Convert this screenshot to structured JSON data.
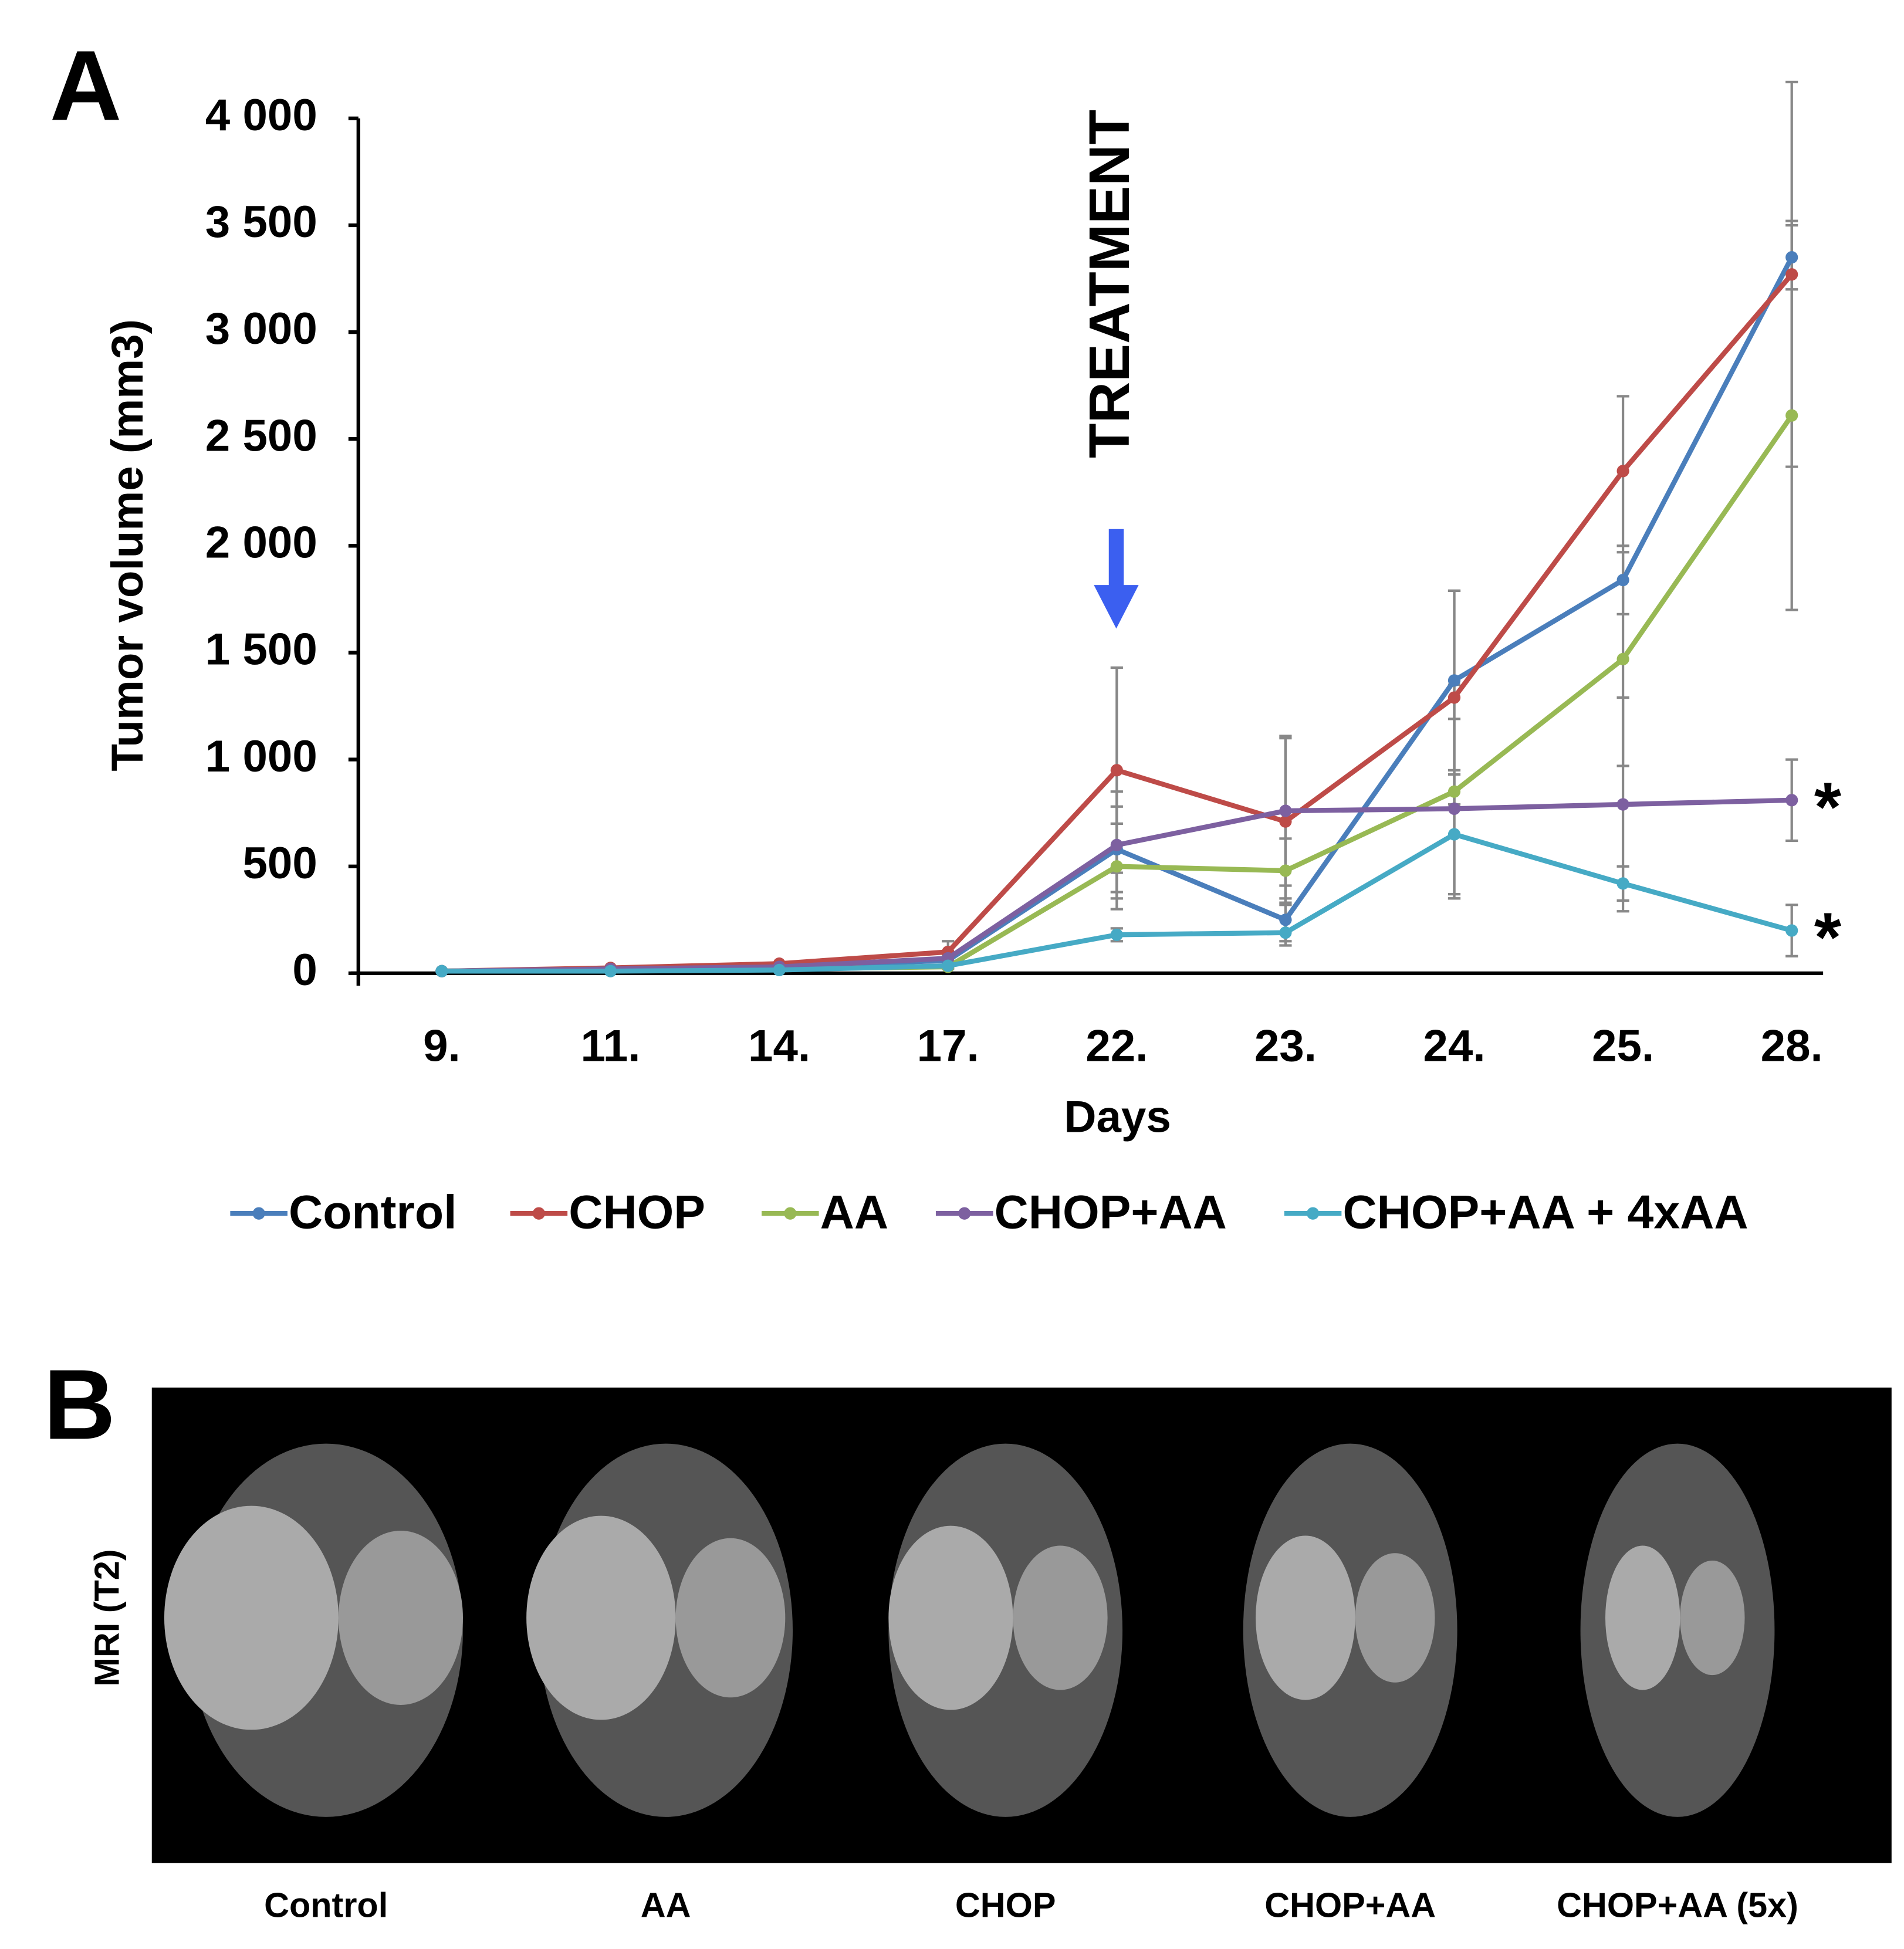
{
  "panels": {
    "a": "A",
    "b": "B"
  },
  "chart_data": {
    "type": "line",
    "y_label": "Tumor volume (mm3)",
    "x_label": "Days",
    "annotation": "TREATMENT",
    "categories": [
      "9.",
      "11.",
      "14.",
      "17.",
      "22.",
      "23.",
      "24.",
      "25.",
      "28."
    ],
    "ylim": [
      0,
      4000
    ],
    "yticks": [
      0,
      500,
      {
        "value": 1000,
        "label": "1 000"
      },
      {
        "value": 1500,
        "label": "1 500"
      },
      {
        "value": 2000,
        "label": "2 000"
      },
      {
        "value": 2500,
        "label": "2 500"
      },
      {
        "value": 3000,
        "label": "3 000"
      },
      {
        "value": 3500,
        "label": "3 500"
      },
      {
        "value": 4000,
        "label": "4 000"
      }
    ],
    "series": [
      {
        "name": "Control",
        "color": "#4a7ebb",
        "values": [
          10,
          20,
          30,
          60,
          580,
          250,
          1370,
          1840,
          3350
        ],
        "errors": [
          0,
          0,
          0,
          20,
          200,
          100,
          420,
          160,
          150
        ]
      },
      {
        "name": "CHOP",
        "color": "#be4b48",
        "values": [
          10,
          25,
          45,
          100,
          950,
          710,
          1290,
          2350,
          3270
        ],
        "errors": [
          0,
          0,
          0,
          50,
          480,
          390,
          500,
          350,
          900
        ]
      },
      {
        "name": "AA",
        "color": "#98b954",
        "values": [
          10,
          15,
          20,
          30,
          500,
          480,
          850,
          1470,
          2610
        ],
        "errors": [
          0,
          0,
          0,
          10,
          200,
          150,
          500,
          500,
          910
        ]
      },
      {
        "name": "CHOP+AA",
        "color": "#7d60a0",
        "values": [
          10,
          20,
          30,
          70,
          600,
          760,
          770,
          790,
          810
        ],
        "errors": [
          0,
          0,
          0,
          20,
          250,
          350,
          420,
          500,
          190
        ],
        "marker": "*"
      },
      {
        "name": "CHOP+AA + 4xAA",
        "color": "#46aac5",
        "values": [
          10,
          10,
          15,
          35,
          180,
          190,
          650,
          420,
          200
        ],
        "errors": [
          0,
          0,
          0,
          10,
          30,
          60,
          280,
          80,
          120
        ],
        "marker": "*"
      }
    ]
  },
  "mri": {
    "row_label": "MRI (T2)",
    "columns": [
      "Control",
      "AA",
      "CHOP",
      "CHOP+AA",
      "CHOP+AA (5x)"
    ]
  }
}
